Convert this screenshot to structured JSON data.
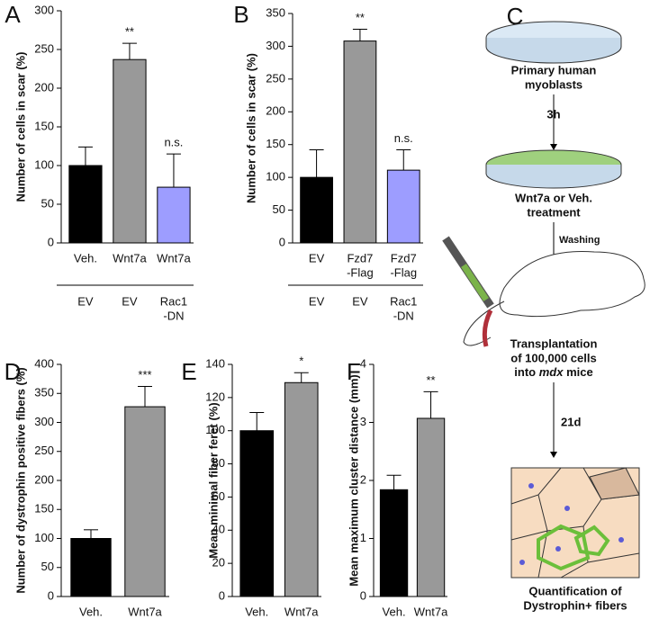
{
  "chart_data": [
    {
      "type": "bar",
      "label": "A",
      "ylabel": "Number of cells in scar (%)",
      "categories": [
        [
          "Veh."
        ],
        [
          "Wnt7a"
        ],
        [
          "Wnt7a"
        ]
      ],
      "groups": [
        [
          "EV"
        ],
        [
          "EV"
        ],
        [
          "Rac1",
          "-DN"
        ]
      ],
      "values": [
        100,
        237,
        72
      ],
      "errors": [
        24,
        21,
        43
      ],
      "significance": [
        null,
        "**",
        "n.s."
      ],
      "colors": [
        "#000000",
        "#999999",
        "#9d9dff"
      ],
      "ylim": [
        0,
        300
      ],
      "yticks": [
        0,
        50,
        100,
        150,
        200,
        250,
        300
      ]
    },
    {
      "type": "bar",
      "label": "B",
      "ylabel": "Number of cells in scar (%)",
      "categories": [
        [
          "EV"
        ],
        [
          "Fzd7",
          "-Flag"
        ],
        [
          "Fzd7",
          "-Flag"
        ]
      ],
      "groups": [
        [
          "EV"
        ],
        [
          "EV"
        ],
        [
          "Rac1",
          "-DN"
        ]
      ],
      "values": [
        100,
        308,
        111
      ],
      "errors": [
        42,
        18,
        31
      ],
      "significance": [
        null,
        "**",
        "n.s."
      ],
      "colors": [
        "#000000",
        "#999999",
        "#9d9dff"
      ],
      "ylim": [
        0,
        350
      ],
      "yticks": [
        0,
        50,
        100,
        150,
        200,
        250,
        300,
        350
      ]
    },
    {
      "type": "bar",
      "label": "D",
      "ylabel": "Number of dystrophin positive fibers (%)",
      "categories": [
        [
          "Veh."
        ],
        [
          "Wnt7a"
        ]
      ],
      "values": [
        100,
        327
      ],
      "errors": [
        15,
        35
      ],
      "significance": [
        null,
        "***"
      ],
      "colors": [
        "#000000",
        "#999999"
      ],
      "ylim": [
        0,
        400
      ],
      "yticks": [
        0,
        50,
        100,
        150,
        200,
        250,
        300,
        350,
        400
      ]
    },
    {
      "type": "bar",
      "label": "E",
      "ylabel": "Mean minimal fiber feret (%)",
      "categories": [
        [
          "Veh."
        ],
        [
          "Wnt7a"
        ]
      ],
      "values": [
        100,
        129
      ],
      "errors": [
        11,
        6
      ],
      "significance": [
        null,
        "*"
      ],
      "colors": [
        "#000000",
        "#999999"
      ],
      "ylim": [
        0,
        140
      ],
      "yticks": [
        0,
        20,
        40,
        60,
        80,
        100,
        120,
        140
      ]
    },
    {
      "type": "bar",
      "label": "F",
      "ylabel": "Mean maximum cluster distance (mm)",
      "categories": [
        [
          "Veh."
        ],
        [
          "Wnt7a"
        ]
      ],
      "values": [
        1.84,
        3.07
      ],
      "errors": [
        0.25,
        0.46
      ],
      "significance": [
        null,
        "**"
      ],
      "colors": [
        "#000000",
        "#999999"
      ],
      "ylim": [
        0,
        4
      ],
      "yticks": [
        0,
        1,
        2,
        3,
        4
      ]
    }
  ],
  "diagram": {
    "label": "C",
    "step1": [
      "Primary human",
      "myoblasts"
    ],
    "time1": "3h",
    "step2": [
      "Wnt7a or Veh.",
      "treatment"
    ],
    "action": "Washing",
    "step3": [
      "Transplantation",
      "of 100,000 cells",
      "into ",
      "mdx",
      " mice"
    ],
    "time2": "21d",
    "step4": [
      "Quantification of",
      "Dystrophin+ fibers"
    ]
  }
}
